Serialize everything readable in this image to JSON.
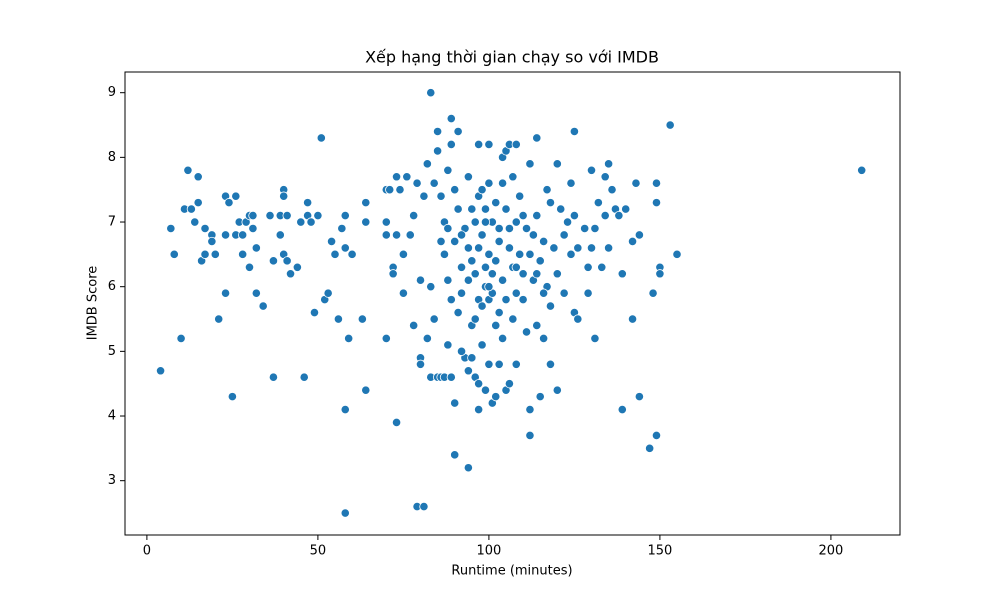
{
  "chart_data": {
    "type": "scatter",
    "title": "Xếp hạng thời gian chạy so với IMDB",
    "x_label": "Runtime (minutes)",
    "y_label": "IMDB Score",
    "color": "#1f77b4",
    "xlim": [
      -6.4,
      220.2
    ],
    "ylim": [
      2.16,
      9.32
    ],
    "xticks": [
      0,
      50,
      100,
      150,
      200
    ],
    "yticks": [
      3,
      4,
      5,
      6,
      7,
      8,
      9
    ],
    "grid": false,
    "x": [
      4,
      8,
      7,
      10,
      11,
      12,
      13,
      14,
      15,
      15,
      16,
      17,
      17,
      19,
      19,
      20,
      21,
      23,
      23,
      23,
      24,
      25,
      26,
      26,
      27,
      28,
      28,
      29,
      30,
      30,
      31,
      31,
      32,
      32,
      34,
      36,
      37,
      37,
      39,
      39,
      40,
      40,
      40,
      41,
      41,
      42,
      44,
      45,
      46,
      47,
      47,
      48,
      49,
      50,
      51,
      52,
      53,
      54,
      55,
      56,
      57,
      58,
      58,
      58,
      58,
      59,
      60,
      63,
      64,
      64,
      64,
      70,
      70,
      70,
      70,
      71,
      72,
      72,
      73,
      73,
      73,
      74,
      75,
      75,
      76,
      77,
      78,
      78,
      79,
      79,
      80,
      80,
      80,
      81,
      81,
      82,
      82,
      83,
      83,
      83,
      84,
      84,
      85,
      85,
      85,
      86,
      86,
      86,
      87,
      87,
      87,
      88,
      88,
      88,
      89,
      89,
      89,
      89,
      90,
      90,
      90,
      90,
      91,
      91,
      91,
      92,
      92,
      93,
      93,
      94,
      94,
      94,
      94,
      95,
      95,
      95,
      96,
      96,
      96,
      97,
      97,
      97,
      97,
      97,
      98,
      98,
      98,
      98,
      99,
      99,
      99,
      100,
      100,
      100,
      100,
      100,
      101,
      101,
      101,
      102,
      102,
      102,
      103,
      103,
      103,
      104,
      104,
      104,
      105,
      105,
      105,
      105,
      106,
      106,
      106,
      107,
      107,
      107,
      108,
      108,
      108,
      108,
      109,
      109,
      110,
      110,
      111,
      111,
      112,
      112,
      112,
      113,
      113,
      114,
      114,
      114,
      115,
      115,
      116,
      116,
      117,
      117,
      118,
      118,
      118,
      119,
      120,
      120,
      120,
      121,
      122,
      122,
      123,
      124,
      124,
      125,
      125,
      125,
      126,
      126,
      128,
      129,
      129,
      130,
      130,
      131,
      131,
      132,
      133,
      134,
      134,
      135,
      135,
      136,
      137,
      138,
      139,
      139,
      140,
      142,
      142,
      143,
      144,
      144,
      147,
      148,
      149,
      149,
      149,
      150,
      150,
      153,
      155,
      209,
      95,
      97,
      99,
      101,
      103,
      96,
      100,
      104,
      92,
      99,
      106,
      110,
      88,
      92,
      94,
      102,
      108,
      112,
      114,
      116
    ],
    "values": [
      4.7,
      6.5,
      6.9,
      5.2,
      7.2,
      7.8,
      7.2,
      7.0,
      7.7,
      7.3,
      6.4,
      6.9,
      6.5,
      6.8,
      6.7,
      6.5,
      5.5,
      7.4,
      6.8,
      5.9,
      7.3,
      4.3,
      7.4,
      6.8,
      7.0,
      6.8,
      6.5,
      7.0,
      7.1,
      6.3,
      6.9,
      7.1,
      6.6,
      5.9,
      5.7,
      7.1,
      6.4,
      4.6,
      7.1,
      6.8,
      7.5,
      7.4,
      6.5,
      7.1,
      6.4,
      6.2,
      6.3,
      7.0,
      4.6,
      7.1,
      7.3,
      7.0,
      5.6,
      7.1,
      8.3,
      5.8,
      5.9,
      6.7,
      6.5,
      5.5,
      6.9,
      7.1,
      6.6,
      4.1,
      2.5,
      5.2,
      6.5,
      5.5,
      7.0,
      7.3,
      4.4,
      7.5,
      7.0,
      6.8,
      5.2,
      7.5,
      6.3,
      6.2,
      7.7,
      3.9,
      6.8,
      7.5,
      6.5,
      5.9,
      7.7,
      6.8,
      7.1,
      5.4,
      7.6,
      2.6,
      4.9,
      4.8,
      6.1,
      2.6,
      7.4,
      7.9,
      5.2,
      9.0,
      6.0,
      4.6,
      7.6,
      5.5,
      8.4,
      8.1,
      4.6,
      7.4,
      6.7,
      4.6,
      7.0,
      6.5,
      4.6,
      7.8,
      6.1,
      5.1,
      8.6,
      8.2,
      5.8,
      4.6,
      7.5,
      6.7,
      4.2,
      3.4,
      8.4,
      7.2,
      5.6,
      6.3,
      5.9,
      6.9,
      4.9,
      7.7,
      6.6,
      4.7,
      3.2,
      7.2,
      5.4,
      4.9,
      7.0,
      6.2,
      4.6,
      8.2,
      7.4,
      5.8,
      4.5,
      4.1,
      7.5,
      6.8,
      5.7,
      5.1,
      7.2,
      6.0,
      4.4,
      8.2,
      7.6,
      6.5,
      5.8,
      4.8,
      7.0,
      6.2,
      4.2,
      7.3,
      6.4,
      4.3,
      6.9,
      5.6,
      4.8,
      7.6,
      8.0,
      6.1,
      8.1,
      7.2,
      5.8,
      4.4,
      8.2,
      6.6,
      4.5,
      7.7,
      6.3,
      5.5,
      8.2,
      7.0,
      5.9,
      4.8,
      7.4,
      6.5,
      7.1,
      6.2,
      6.9,
      5.3,
      7.9,
      4.1,
      3.7,
      6.8,
      6.1,
      8.3,
      7.1,
      5.4,
      6.4,
      4.3,
      6.7,
      5.2,
      7.5,
      6.0,
      7.3,
      5.7,
      4.8,
      6.6,
      7.9,
      6.2,
      4.4,
      7.2,
      6.8,
      5.9,
      7.0,
      7.6,
      6.5,
      8.4,
      7.1,
      5.6,
      6.6,
      5.5,
      6.9,
      6.3,
      5.9,
      7.8,
      6.6,
      6.9,
      5.2,
      7.3,
      6.3,
      7.7,
      7.1,
      7.9,
      6.6,
      7.5,
      7.2,
      7.1,
      6.2,
      4.1,
      7.2,
      6.7,
      5.5,
      7.6,
      6.8,
      4.3,
      3.5,
      5.9,
      7.6,
      7.3,
      3.7,
      6.3,
      6.2,
      8.5,
      6.5,
      7.8,
      6.4,
      6.6,
      6.3,
      5.9,
      6.7,
      5.5,
      6.0,
      5.2,
      5.0,
      7.0,
      6.9,
      5.8,
      6.9,
      6.8,
      6.1,
      5.4,
      6.3,
      6.5,
      6.2,
      5.9
    ]
  }
}
